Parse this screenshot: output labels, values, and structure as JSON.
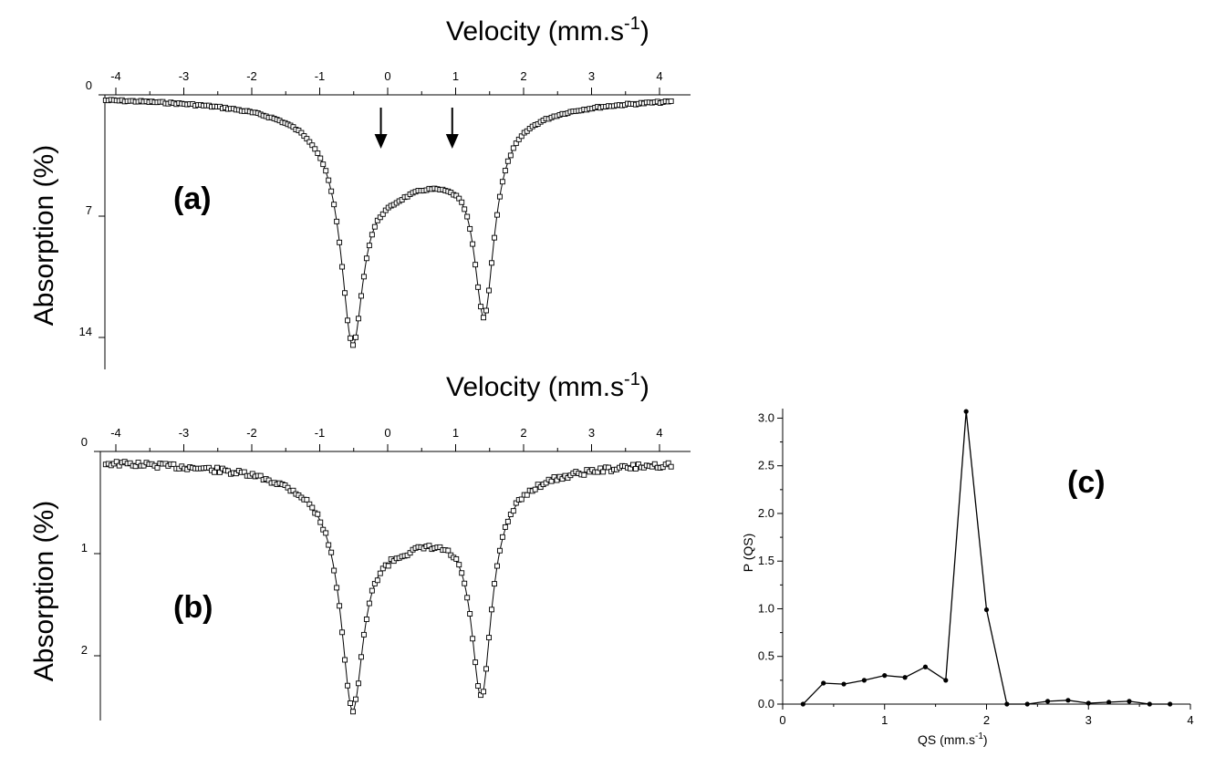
{
  "chart_data": [
    {
      "type": "scatter",
      "panel_label": "(a)",
      "xlabel": "Velocity (mm.s",
      "xlabel_sup": "-1",
      "xlabel_close": ")",
      "ylabel": "Absorption (%)",
      "xlim": [
        -4.2,
        4.3
      ],
      "ylim": [
        0,
        15.5
      ],
      "y_inverted": true,
      "x_ticks": [
        "-4",
        "-3",
        "-2",
        "-1",
        "0",
        "1",
        "2",
        "3",
        "4"
      ],
      "y_ticks": [
        "0",
        "7",
        "14"
      ],
      "y_tick_values": [
        0,
        7,
        14
      ],
      "arrows_at_velocity": [
        -0.1,
        0.95
      ],
      "fit": {
        "baseline": 0.05,
        "doublets": [
          {
            "center": -0.52,
            "width": 0.2,
            "depth": 11.2
          },
          {
            "center": 1.42,
            "width": 0.18,
            "depth": 10.2
          },
          {
            "center": 0.25,
            "width": 1.05,
            "depth": 3.4
          },
          {
            "center": -0.05,
            "width": 0.5,
            "depth": 1.4
          },
          {
            "center": 0.95,
            "width": 0.5,
            "depth": 1.5
          }
        ]
      },
      "points": {
        "x_start": -4.15,
        "x_end": 4.2,
        "step": 0.04,
        "noise": 0.05
      }
    },
    {
      "type": "scatter",
      "panel_label": "(b)",
      "xlabel": "Velocity (mm.s",
      "xlabel_sup": "-1",
      "xlabel_close": ")",
      "ylabel": "Absorption (%)",
      "xlim": [
        -4.2,
        4.3
      ],
      "ylim": [
        0,
        2.85
      ],
      "y_inverted": true,
      "x_ticks": [
        "-4",
        "-3",
        "-2",
        "-1",
        "0",
        "1",
        "2",
        "3",
        "4"
      ],
      "y_ticks": [
        "0",
        "1",
        "2"
      ],
      "y_tick_values": [
        0,
        1,
        2
      ],
      "fit": {
        "baseline": 0.07,
        "doublets": [
          {
            "center": -0.52,
            "width": 0.2,
            "depth": 1.95
          },
          {
            "center": 1.38,
            "width": 0.18,
            "depth": 1.9
          },
          {
            "center": 0.25,
            "width": 1.1,
            "depth": 0.55
          },
          {
            "center": -0.05,
            "width": 0.55,
            "depth": 0.18
          },
          {
            "center": 0.95,
            "width": 0.55,
            "depth": 0.2
          }
        ]
      },
      "points": {
        "x_start": -4.15,
        "x_end": 4.2,
        "step": 0.04,
        "noise": 0.025
      }
    },
    {
      "type": "line",
      "panel_label": "(c)",
      "xlabel": "QS (mm.s",
      "xlabel_sup": "-1",
      "xlabel_close": ")",
      "ylabel": "P (QS)",
      "xlim": [
        0,
        4
      ],
      "ylim": [
        0,
        3.1
      ],
      "x_ticks": [
        "0",
        "1",
        "2",
        "3",
        "4"
      ],
      "x_tick_values": [
        0,
        1,
        2,
        3,
        4
      ],
      "y_ticks": [
        "0.0",
        "0.5",
        "1.0",
        "1.5",
        "2.0",
        "2.5",
        "3.0"
      ],
      "y_tick_values": [
        0,
        0.5,
        1.0,
        1.5,
        2.0,
        2.5,
        3.0
      ],
      "x": [
        0.2,
        0.4,
        0.6,
        0.8,
        1.0,
        1.2,
        1.4,
        1.6,
        1.8,
        2.0,
        2.2,
        2.4,
        2.6,
        2.8,
        3.0,
        3.2,
        3.4,
        3.6,
        3.8
      ],
      "y": [
        0.0,
        0.22,
        0.21,
        0.25,
        0.3,
        0.28,
        0.39,
        0.25,
        3.07,
        0.99,
        0.0,
        0.0,
        0.03,
        0.04,
        0.01,
        0.02,
        0.03,
        0.0,
        0.0
      ]
    }
  ]
}
